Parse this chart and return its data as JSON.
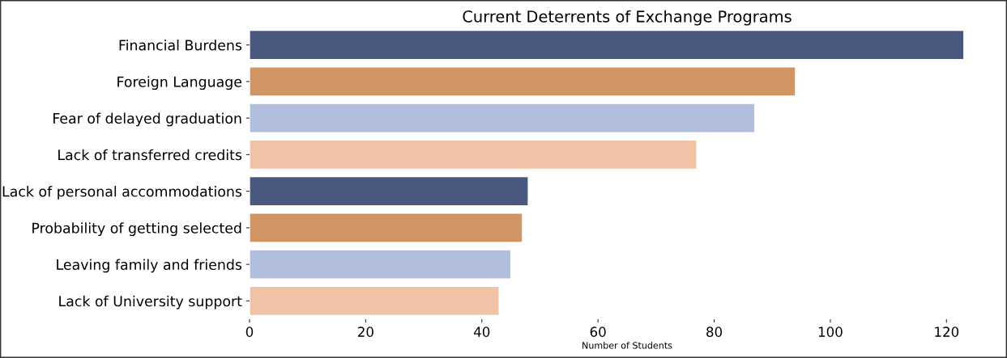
{
  "chart_data": {
    "type": "bar",
    "orientation": "horizontal",
    "title": "Current Deterrents of Exchange Programs",
    "xlabel": "Number of Students",
    "categories": [
      "Financial Burdens",
      "Foreign Language",
      "Fear of delayed graduation",
      "Lack of transferred credits",
      "Lack of personal accommodations",
      "Probability of getting selected",
      "Leaving family and friends",
      "Lack of University support"
    ],
    "values": [
      123,
      94,
      87,
      77,
      48,
      47,
      45,
      43
    ],
    "colors": [
      "#4a5880",
      "#d19463",
      "#b2bedd",
      "#f0c3a6",
      "#4a5880",
      "#d19463",
      "#b2bedd",
      "#f0c3a6"
    ],
    "xlim": [
      0,
      130
    ],
    "xticks": [
      0,
      20,
      40,
      60,
      80,
      100,
      120
    ],
    "grid": false,
    "legend": false
  }
}
